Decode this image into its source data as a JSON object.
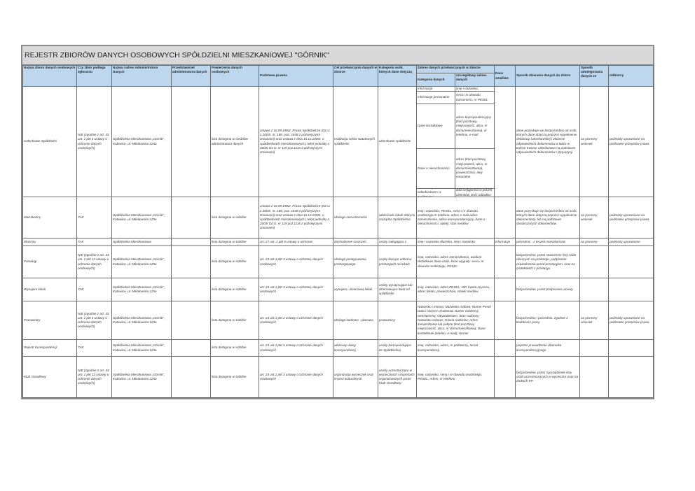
{
  "title": "REJESTR ZBIORÓW DANYCH OSOBOWYCH SPÓŁDZIELNI MIESZKANIOWEJ \"GÓRNIK\"",
  "header": {
    "nazwa": "Nazwa zbioru danych osobowych",
    "zgloszenie": "Czy zbiór podlega zgłoszniu",
    "administrator": "Nazwa i adres Administratora Danych",
    "przedstawiciel": "Przedstawiciel administratora danych",
    "powierzenie": "Powierzenia danych osobowych",
    "podstawa": "Podstawa prawna",
    "cel": "Cel przetwarzania danych w zbiorze",
    "kategoria_osob": "Kategoria osób, których dane dotyczą",
    "zakres_group": "Zakres danych przetwarzanych w zbiorze",
    "kategoria_danych": "Kategoria danych",
    "szczegolowy_zakres": "szczegółowy zakres danych",
    "wrazliwe": "Dane wrażliwe",
    "sposob_zbierania": "Sposób zbierania danych do zbioru",
    "udostepnianie": "Sposób udostępniania danych ze",
    "odbiorcy": "Odbiorcy"
  },
  "rows": [
    {
      "nazwa": "Członkowie Spółdzielni",
      "zgloszenie": "NIE (zgodnie z art. 43 ust. 1 pkt 4 ustawy o ochronie danych osobowych)",
      "administrator": "Spółdzielnia Mieszkaniowa „Górnik”, Katowice, ul. Mikołowska 125a",
      "przedstawiciel": "",
      "powierzenie": "lista dostępna w siedzibie administratora danych",
      "podstawa": "ustawa z 16.09.1982r. Prawo Spółdzielcze (Dz.U. z 2003r. nr. 188, poz. 1848 z późniejszymi zmianami)  oraz ustawa z dnia 15.12.2000r. o spółdzielniach mieszkaniowych ( tekst jednolity z 2003r Dz.U. nr 119 poz.1116 z późniejszymi zmianami)",
      "cel": "realizacja celów statutowych spółdzielni",
      "kategoria_osob": "członkowie spółdzielni",
      "details": [
        {
          "kategoria": "Informacje",
          "zakres": "imię i nazwisko,"
        },
        {
          "kategoria": "Informacje personalne",
          "zakres": "seria i nr dowodu tożsamości, nr PESEL"
        },
        {
          "kategoria": "Dane kontaktowe",
          "zakres": "adres korespondencyjny (kod pocztowy, miejscowość, ulica, nr domu/mieszkania), nr telefonu, e-mail"
        },
        {
          "kategoria": "Dane o nieruchomości",
          "zakres": "adres (kod pocztowy, miejscowość, ulica, nr domu/mieszkania), powierzchnia, akty notarialne"
        },
        {
          "kategoria": "Dane związane z członkostwem w spółdzielni",
          "zakres": "data wstąpienia w poczet członków, ilość udziałów"
        }
      ],
      "wrazliwe": "",
      "sposob_zbierania": "dane pozyskuje się bezpośrednio od osób, których dane dotyczą poprzez wypełnienie deklaracji członkowskiej i złożenie odpowiednich dokumentów a także w trakcie trwania członkostwa na podstawie odpowiednich dokumentów i dyspozycji",
      "udostepnianie": "na pisemny wniosek",
      "odbiorcy": "podmioty uprawnione na podstawie przepisów prawa"
    },
    {
      "nazwa": "Mieszkańcy",
      "zgloszenie": "TAK",
      "administrator": "Spółdzielnia Mieszkaniowa „Górnik”, Katowice, ul. Mikołowska 125a",
      "przedstawiciel": "",
      "powierzenie": "lista dostępna w sidzibie",
      "podstawa": "ustawa z 16.09.1982r. Prawo Spółdzielcze (Dz.U. z 2003r. nr. 188, poz. 1848 z późniejszymi zmianami)  oraz ustawa z dnia 15.12.2000r. o spółdzielniach mieszkaniowych ( tekst jednolity z 2003r Dz.U. nr 119 poz.1116 z późniejszymi zmianami)",
      "cel": "obsługa nieruchomości",
      "kategoria_osob": "właściciele lokali, którymi zarządza Spółdzielnia",
      "zakres": "imię i nazwisko, PESEL, seria i nr dowodu osobistego,nr telefonu, adres e-mail,adres zamieszkania, adres korespondencyjny, dane o nieruchomości, opłaty, stan mediów",
      "wrazliwe": "",
      "sposob_zbierania": "dane pozyskuje się bezpośrednio od osób, których dane dotyczą poprzez wypełnienie dokumentacji, lub na podstawie dostarczonych dokumentów.",
      "udostepnianie": "na pisemny wniosek",
      "odbiorcy": "podmioty uprawnione na podstawie przepisów prawa"
    },
    {
      "nazwa": "Dłużnicy",
      "zgloszenie": "TAK",
      "administrator": "Spółdzielnia Mieszkaniowa",
      "przedstawiciel": "",
      "powierzenie": "lista dostępna w sidzibie",
      "podstawa": "art. 27 ust. 2 pkt 5 ustawy o ochronie",
      "cel": "dochodzenie roszczeń",
      "kategoria_osob": "osoby zalegające z",
      "zakres": "imię i nazwisko dłużnika, imię i nazwisko",
      "wrazliwe": "informacje",
      "sposob_zbierania": "pośrednio - z teczek mieszkańców",
      "udostepnianie": "na pisemny",
      "odbiorcy": "podmioty uprawnione"
    },
    {
      "nazwa": "Przetargi",
      "zgloszenie": "NIE (zgodnie z art. 43 ust. 1 pkt 12 ustawy o ochronie danych osobowych)",
      "administrator": "Spółdzielnia Mieszkaniowa „Górnik”, Katowice, ul. Mikołowska 125a",
      "przedstawiciel": "",
      "powierzenie": "lista dostępna w sidzibie",
      "podstawa": "art. 23 ust.1 pkt 3 ustawy o ochronie danych osobowych",
      "cel": "obsługa postępowania przetargowego",
      "kategoria_osob": "osoby biorące udział w przetargach na lokale",
      "zakres": "imię, nazwisko, adres zamieszkania, wadium dodatkowo dane osób, które wygrały: seria i nr dowodu osobistego, PESEL",
      "wrazliwe": "",
      "sposob_zbierania": "bezpośrednie, przez stworzenie listy osób obecnych na przetargu, podpisanie oświadczenia przed przetargiem, oraz na protokołach z przetargu",
      "udostepnianie": "",
      "odbiorcy": ""
    },
    {
      "nazwa": "Wynajem lokali",
      "zgloszenie": "TAK",
      "administrator": "Spółdzielnia Mieszkaniowa „Górnik”, Katowice, ul. Mikołowska 125a",
      "przedstawiciel": "",
      "powierzenie": "lista dostępna w sidzibie",
      "podstawa": "art. 23 ust.1 pkt 3 ustawy o ochronie danych osobowych",
      "cel": "wynajem i dzierżawa lokali",
      "kategoria_osob": "osoby wynajmujące lub dzierżawiące lokal od spółdzielni",
      "zakres": "imię, nazwisko, adres,PESEL, NIP, kwota czynszu, adres lokalu, powierzchnia, stawki mediów",
      "wrazliwe": "",
      "sposob_zbierania": "bezpośrednie, przez podpisanie umowy",
      "udostepnianie": "",
      "odbiorcy": ""
    },
    {
      "nazwa": "Pracownicy",
      "zgloszenie": "NIE (zgodnie z art. 43 ust. 1 pkt 4 ustawy o ochronie danych osobowych)",
      "administrator": "Spółdzielnia Mieszkaniowa „Górnik”, Katowice, ul. Mikołowska 125a",
      "przedstawiciel": "",
      "powierzenie": "lista dostępna w sidzibie",
      "podstawa": "art. 23 ust.1 pkt 2 ustawy o ochronie danych osobowych",
      "cel": "obsługa kadrowo - płacowa",
      "kategoria_osob": "pracownicy",
      "zakres": "Nazwisko i imiona; Nazwisko rodowe; Numer Pesel; Data i miejsce urodzenia; Numer ewidencji wewnętrznej; Obywatelstwo; Stan rodzinny;  Nazwisko rodowe; Imiona rodziców; Adres zamieszkania lub pobytu (kod pocztowy, miejscowość, ulica, nr domu/mieszkania); Dane kontaktowe (telefon, e-mail); Numer",
      "wrazliwe": "",
      "sposob_zbierania": "bezpośrednio i pośrednio, zgodnie z kodeksem pracy",
      "udostepnianie": "na pisemny wniosek",
      "odbiorcy": "podmioty uprawnione na podstawie przepisów prawa"
    },
    {
      "nazwa": "Rejestr Korespondencji",
      "zgloszenie": "TAK",
      "administrator": "Spółdzielnia Mieszkaniowa „Górnik”, Katowice, ul. Mikołowska 125a",
      "przedstawiciel": "",
      "powierzenie": "lista dostępna w sidzibie",
      "podstawa": "art. 23 ust.1 pkt 5 ustawy o ochronie danych osobowych",
      "cel": "właściwy obieg korespondencji",
      "kategoria_osob": "osoby korespondujące ze Spółdzielnią",
      "zakres": "imię, nazwisko, adres, nr podawczy, temat korespondencji",
      "wrazliwe": "",
      "sposob_zbierania": "poprzez prowadzenie dziennika korespondencyjnego",
      "udostepnianie": "",
      "odbiorcy": ""
    },
    {
      "nazwa": "Klub Osiedlowy",
      "zgloszenie": "NIE (zgodnie z art. 43 ust. 1 pkt 12 ustawy o ochronie danych osobowych)",
      "administrator": "Spółdzielnia Mieszkaniowa „Górnik”, Katowice, ul. Mikołowska 125a",
      "przedstawiciel": "",
      "powierzenie": "lista dostępna w sidzibie",
      "podstawa": "art. 23 ust.1 pkt 3 ustawy o ochronie danych osobowych",
      "cel": "organizacja wycieczek oraz imprez kulturalnych",
      "kategoria_osob": "osoby uczestniczące w wycieczkach i imprezach organizowanych przez Klub Osiedlowy",
      "zakres": "imię, nazwisko, seria i nr dowodu osobistego, PESEL,  Adres, nr telefonu",
      "wrazliwe": "",
      "sposob_zbierania": "bezpośrednie, przez sporządzenie listy osób uczestniczących w wycieczce oraz na drukach KP",
      "udostepnianie": "",
      "odbiorcy": ""
    }
  ],
  "colors": {
    "header_bg": "#bdd7ee",
    "title_bg": "#d9d9d9",
    "border": "#6d6d6d"
  }
}
